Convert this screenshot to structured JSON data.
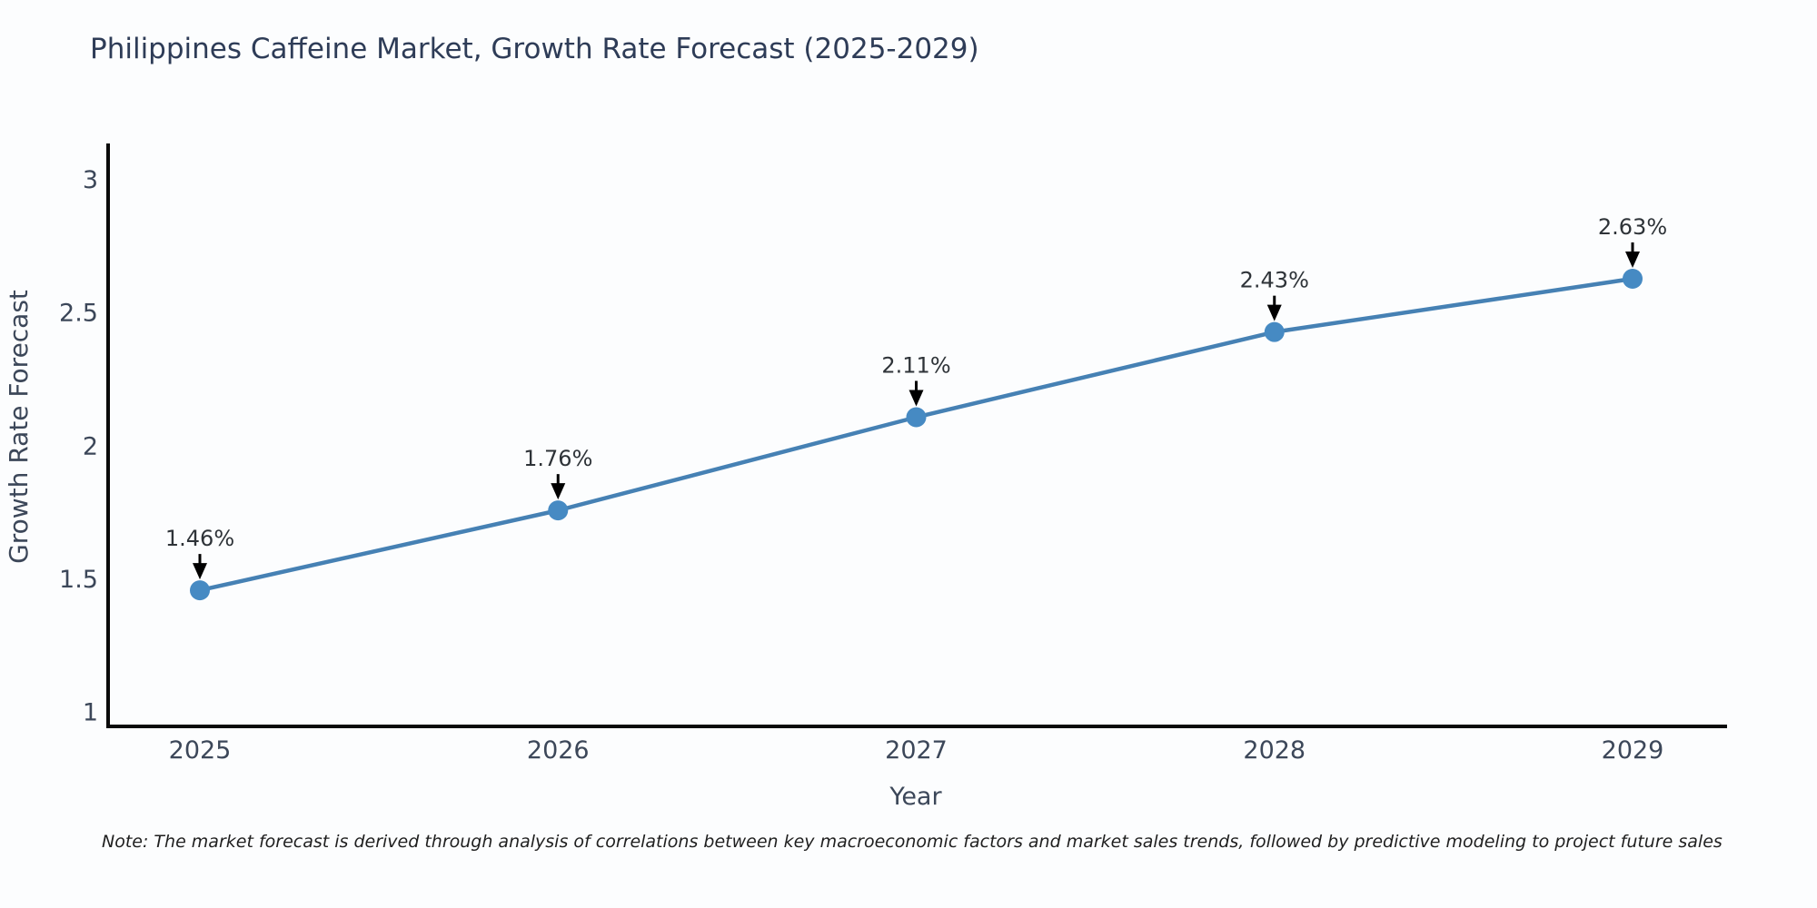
{
  "title": "Philippines Caffeine Market, Growth Rate Forecast (2025-2029)",
  "note": "Note: The market forecast is derived through analysis of correlations between key macroeconomic factors and market sales trends, followed by predictive modeling to project future sales",
  "chart_data": {
    "type": "line",
    "title": "Philippines Caffeine Market, Growth Rate Forecast (2025-2029)",
    "xlabel": "Year",
    "ylabel": "Growth Rate Forecast",
    "x": [
      2025,
      2026,
      2027,
      2028,
      2029
    ],
    "x_tick_labels": [
      "2025",
      "2026",
      "2027",
      "2028",
      "2029"
    ],
    "values": [
      1.46,
      1.76,
      2.11,
      2.43,
      2.63
    ],
    "point_labels": [
      "1.46%",
      "1.76%",
      "2.11%",
      "2.43%",
      "2.63%"
    ],
    "yticks": [
      1,
      1.5,
      2,
      2.5,
      3
    ],
    "ytick_labels": [
      "1",
      "1.5",
      "2",
      "2.5",
      "3"
    ],
    "ylim": [
      1,
      3.2
    ],
    "grid": false,
    "legend": "none",
    "line_color": "#4681b4",
    "marker_color": "#468ac3",
    "annotation_arrow_color": "#000000",
    "annotation_text_color": "#2e3338",
    "axis_color": "#0a0a0a",
    "tick_label_color": "#3c4759",
    "axis_title_color": "#3c4759"
  },
  "colors": {
    "background": "#fcfdfe",
    "title_text": "#2e3c57",
    "note_text": "#1f1f1f"
  }
}
